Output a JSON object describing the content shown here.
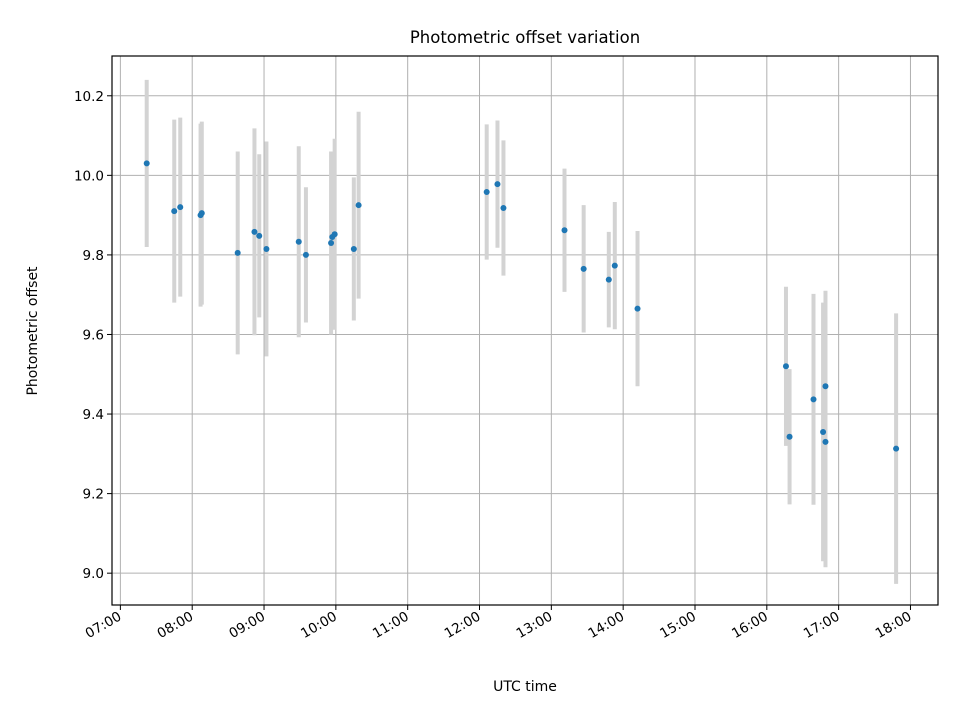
{
  "chart_data": {
    "type": "scatter",
    "title": "Photometric offset variation",
    "xlabel": "UTC time",
    "ylabel": "Photometric offset",
    "xlim": [
      "06:53",
      "18:23"
    ],
    "ylim": [
      8.92,
      10.3
    ],
    "x_ticks": [
      "07:00",
      "08:00",
      "09:00",
      "10:00",
      "11:00",
      "12:00",
      "13:00",
      "14:00",
      "15:00",
      "16:00",
      "17:00",
      "18:00"
    ],
    "y_ticks": [
      9.0,
      9.2,
      9.4,
      9.6,
      9.8,
      10.0,
      10.2
    ],
    "grid": true,
    "marker_color": "#1f77b4",
    "errorbar_color": "#d3d3d3",
    "points": [
      {
        "x": "07:22",
        "y": 10.03,
        "err": 0.21
      },
      {
        "x": "07:45",
        "y": 9.91,
        "err": 0.23
      },
      {
        "x": "07:50",
        "y": 9.92,
        "err": 0.225
      },
      {
        "x": "08:07",
        "y": 9.9,
        "err": 0.23
      },
      {
        "x": "08:08",
        "y": 9.905,
        "err": 0.23
      },
      {
        "x": "08:38",
        "y": 9.805,
        "err": 0.255
      },
      {
        "x": "08:52",
        "y": 9.858,
        "err": 0.26
      },
      {
        "x": "08:56",
        "y": 9.848,
        "err": 0.205
      },
      {
        "x": "09:02",
        "y": 9.815,
        "err": 0.27
      },
      {
        "x": "09:29",
        "y": 9.833,
        "err": 0.24
      },
      {
        "x": "09:35",
        "y": 9.8,
        "err": 0.17
      },
      {
        "x": "09:56",
        "y": 9.83,
        "err": 0.23
      },
      {
        "x": "09:57",
        "y": 9.845,
        "err": 0.21
      },
      {
        "x": "09:59",
        "y": 9.852,
        "err": 0.24
      },
      {
        "x": "10:15",
        "y": 9.815,
        "err": 0.18
      },
      {
        "x": "10:19",
        "y": 9.925,
        "err": 0.235
      },
      {
        "x": "12:06",
        "y": 9.958,
        "err": 0.17
      },
      {
        "x": "12:15",
        "y": 9.978,
        "err": 0.16
      },
      {
        "x": "12:20",
        "y": 9.918,
        "err": 0.17
      },
      {
        "x": "13:11",
        "y": 9.862,
        "err": 0.155
      },
      {
        "x": "13:27",
        "y": 9.765,
        "err": 0.16
      },
      {
        "x": "13:48",
        "y": 9.738,
        "err": 0.12
      },
      {
        "x": "13:53",
        "y": 9.773,
        "err": 0.16
      },
      {
        "x": "14:12",
        "y": 9.665,
        "err": 0.195
      },
      {
        "x": "16:16",
        "y": 9.52,
        "err": 0.2
      },
      {
        "x": "16:19",
        "y": 9.343,
        "err": 0.17
      },
      {
        "x": "16:39",
        "y": 9.437,
        "err": 0.265
      },
      {
        "x": "16:47",
        "y": 9.355,
        "err": 0.325
      },
      {
        "x": "16:49",
        "y": 9.47,
        "err": 0.24
      },
      {
        "x": "16:49",
        "y": 9.33,
        "err": 0.315
      },
      {
        "x": "17:48",
        "y": 9.313,
        "err": 0.34
      }
    ]
  }
}
